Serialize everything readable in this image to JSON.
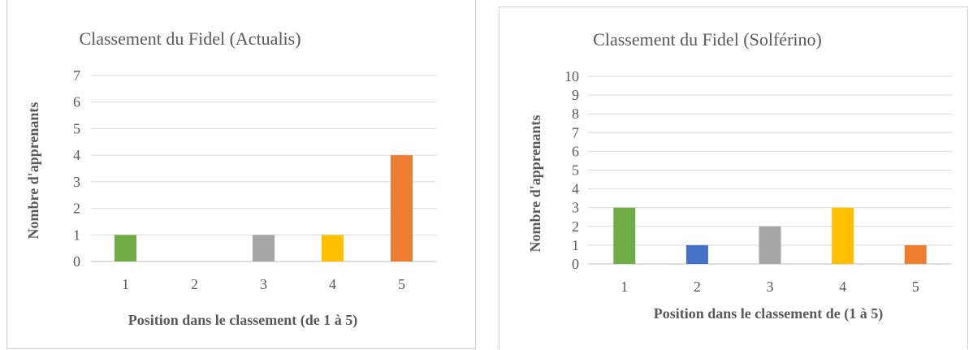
{
  "chart_data": [
    {
      "type": "bar",
      "title": "Classement du Fidel (Actualis)",
      "xlabel": "Position dans le classement (de 1 à 5)",
      "ylabel": "Nombre d'apprenants",
      "categories": [
        "1",
        "2",
        "3",
        "4",
        "5"
      ],
      "values": [
        1,
        0,
        1,
        1,
        4
      ],
      "colors": [
        "#70ad47",
        "#4472c4",
        "#a5a5a5",
        "#ffc000",
        "#ed7d31"
      ],
      "ylim": [
        0,
        7
      ],
      "yticks": [
        "0",
        "1",
        "2",
        "3",
        "4",
        "5",
        "6",
        "7"
      ],
      "grid": true,
      "legend": "none"
    },
    {
      "type": "bar",
      "title": "Classement du Fidel (Solférino)",
      "xlabel": "Position dans le classement de (1 à 5)",
      "ylabel": "Nombre d'apprenants",
      "categories": [
        "1",
        "2",
        "3",
        "4",
        "5"
      ],
      "values": [
        3,
        1,
        2,
        3,
        1
      ],
      "colors": [
        "#70ad47",
        "#4472c4",
        "#a5a5a5",
        "#ffc000",
        "#ed7d31"
      ],
      "ylim": [
        0,
        10
      ],
      "yticks": [
        "0",
        "1",
        "2",
        "3",
        "4",
        "5",
        "6",
        "7",
        "8",
        "9",
        "10"
      ],
      "grid": true,
      "legend": "none"
    }
  ]
}
